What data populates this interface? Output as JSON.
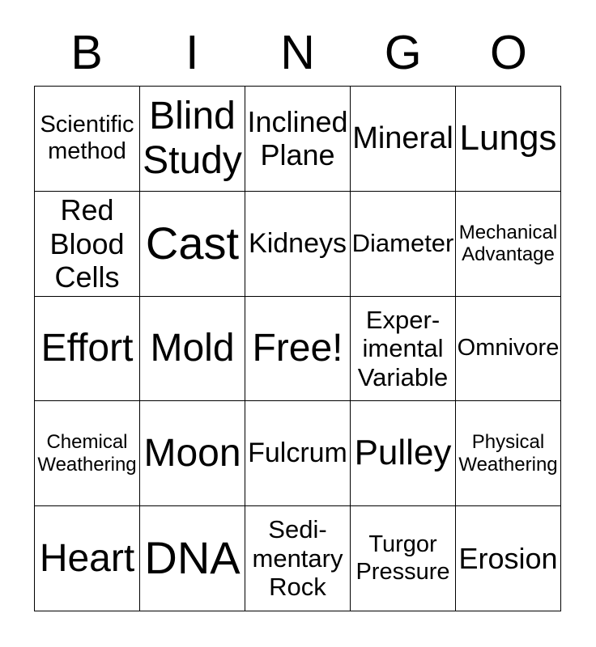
{
  "title": {
    "letters": [
      "B",
      "I",
      "N",
      "G",
      "O"
    ]
  },
  "grid": {
    "rows": [
      {
        "cells": [
          "Scientific\nmethod",
          "Blind\nStudy",
          "Inclined\nPlane",
          "Mineral",
          "Lungs"
        ]
      },
      {
        "cells": [
          "Red\nBlood\nCells",
          "Cast",
          "Kidneys",
          "Diameter",
          "Mechanical\nAdvantage"
        ]
      },
      {
        "cells": [
          "Effort",
          "Mold",
          "Free!",
          "Exper-\nimental\nVariable",
          "Omnivore"
        ]
      },
      {
        "cells": [
          "Chemical\nWeathering",
          "Moon",
          "Fulcrum",
          "Pulley",
          "Physical\nWeathering"
        ]
      },
      {
        "cells": [
          "Heart",
          "DNA",
          "Sedi-\nmentary\nRock",
          "Turgor\nPressure",
          "Erosion"
        ]
      }
    ]
  },
  "colors": {
    "background": "#ffffff",
    "text": "#000000",
    "grid_border": "#000000"
  }
}
